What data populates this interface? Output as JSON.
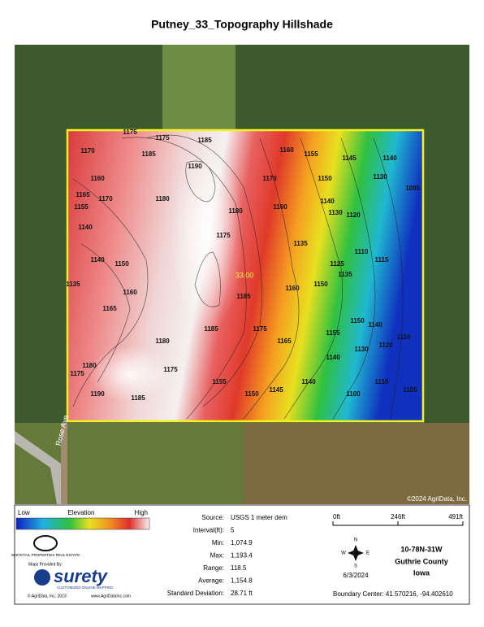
{
  "title": "Putney_33_Topography Hillshade",
  "map": {
    "field_label": "33.00",
    "copyright": "©2024 AgriData, Inc.",
    "road_label": "Rose Ave",
    "contours": [
      1175,
      1175,
      1170,
      1185,
      1185,
      1190,
      1160,
      1155,
      1145,
      1140,
      1095,
      1130,
      1150,
      1170,
      1160,
      1165,
      1170,
      1155,
      1140,
      1180,
      1175,
      1180,
      1160,
      1140,
      1130,
      1120,
      1135,
      1110,
      1115,
      1125,
      1135,
      1150,
      1160,
      1140,
      1150,
      1185,
      1185,
      1160,
      1165,
      1175,
      1165,
      1155,
      1150,
      1140,
      1140,
      1130,
      1120,
      1110,
      1180,
      1175,
      1190,
      1185,
      1155,
      1150,
      1145,
      1140,
      1100,
      1110,
      1105,
      1135,
      1175,
      1180
    ]
  },
  "legend": {
    "low": "Low",
    "title": "Elevation",
    "high": "High"
  },
  "stats": [
    [
      "Source:",
      "USGS 1 meter dem"
    ],
    [
      "Interval(ft):",
      "5"
    ],
    [
      "Min:",
      "1,074.9"
    ],
    [
      "Max:",
      "1,193.4"
    ],
    [
      "Range:",
      "118.5"
    ],
    [
      "Average:",
      "1,154.8"
    ],
    [
      "Standard Deviation:",
      "28.71 ft"
    ]
  ],
  "scale": [
    "0ft",
    "246ft",
    "491ft"
  ],
  "compass": {
    "n": "N",
    "s": "S",
    "e": "E",
    "w": "W"
  },
  "date": "6/3/2024",
  "location": [
    "10-78N-31W",
    "Guthrie County",
    "Iowa"
  ],
  "boundary_center": "Boundary Center: 41.570216, -94.402610",
  "logos": {
    "wpre": "WHITETAIL PROPERTIES REAL ESTATE",
    "maps_by": "Maps Provided By:",
    "surety": "surety",
    "surety_tag": "CUSTOMIZED ONLINE MAPPING",
    "copyright": "© AgriData, Inc. 2023",
    "url": "www.AgriDataInc.com"
  }
}
